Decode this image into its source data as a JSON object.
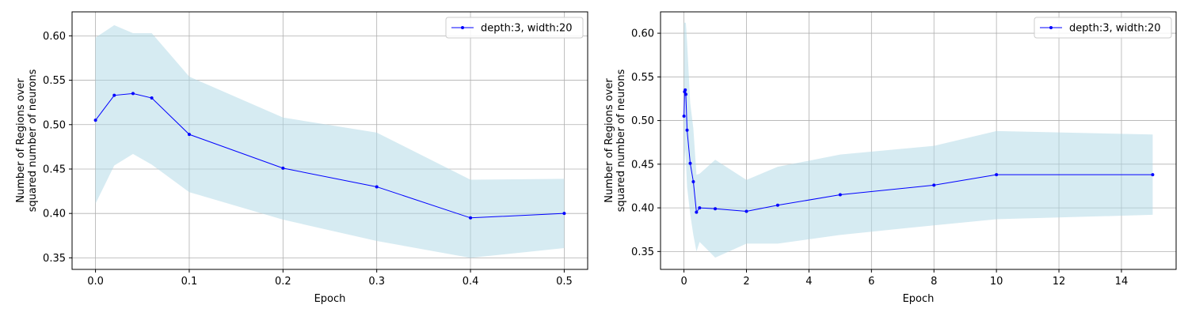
{
  "colors": {
    "line": "#0000ff",
    "band": "#add8e6",
    "grid": "#b0b0b0",
    "axes": "#000000",
    "legend_border": "#cccccc"
  },
  "chart_data": [
    {
      "type": "line",
      "xlabel": "Epoch",
      "ylabel_lines": [
        "Number of Regions over",
        "squared number of neurons"
      ],
      "xlim": [
        -0.025,
        0.525
      ],
      "ylim": [
        0.337,
        0.627
      ],
      "xticks": [
        0.0,
        0.1,
        0.2,
        0.3,
        0.4,
        0.5
      ],
      "xtick_labels": [
        "0.0",
        "0.1",
        "0.2",
        "0.3",
        "0.4",
        "0.5"
      ],
      "yticks": [
        0.35,
        0.4,
        0.45,
        0.5,
        0.55,
        0.6
      ],
      "ytick_labels": [
        "0.35",
        "0.40",
        "0.45",
        "0.50",
        "0.55",
        "0.60"
      ],
      "grid": true,
      "legend_position": "top-right",
      "series": [
        {
          "name": "depth:3, width:20",
          "x": [
            0.0,
            0.02,
            0.04,
            0.06,
            0.1,
            0.2,
            0.3,
            0.4,
            0.5
          ],
          "y": [
            0.505,
            0.533,
            0.535,
            0.53,
            0.489,
            0.451,
            0.43,
            0.395,
            0.4
          ],
          "y_upper": [
            0.598,
            0.612,
            0.603,
            0.603,
            0.554,
            0.508,
            0.491,
            0.438,
            0.439
          ],
          "y_lower": [
            0.411,
            0.454,
            0.467,
            0.455,
            0.424,
            0.393,
            0.369,
            0.35,
            0.361
          ]
        }
      ]
    },
    {
      "type": "line",
      "xlabel": "Epoch",
      "ylabel_lines": [
        "Number of Regions over",
        "squared number of neurons"
      ],
      "xlim": [
        -0.75,
        15.75
      ],
      "ylim": [
        0.3295,
        0.6245
      ],
      "xticks": [
        0,
        2,
        4,
        6,
        8,
        10,
        12,
        14
      ],
      "xtick_labels": [
        "0",
        "2",
        "4",
        "6",
        "8",
        "10",
        "12",
        "14"
      ],
      "yticks": [
        0.35,
        0.4,
        0.45,
        0.5,
        0.55,
        0.6
      ],
      "ytick_labels": [
        "0.35",
        "0.40",
        "0.45",
        "0.50",
        "0.55",
        "0.60"
      ],
      "grid": true,
      "legend_position": "top-right",
      "series": [
        {
          "name": "depth:3, width:20",
          "x": [
            0.0,
            0.02,
            0.04,
            0.06,
            0.1,
            0.2,
            0.3,
            0.4,
            0.5,
            1,
            2,
            3,
            5,
            8,
            10,
            15
          ],
          "y": [
            0.505,
            0.533,
            0.535,
            0.53,
            0.489,
            0.451,
            0.43,
            0.395,
            0.4,
            0.399,
            0.396,
            0.403,
            0.415,
            0.426,
            0.438,
            0.438
          ],
          "y_upper": [
            0.612,
            0.612,
            0.612,
            0.612,
            0.59,
            0.52,
            0.491,
            0.438,
            0.439,
            0.455,
            0.432,
            0.447,
            0.461,
            0.471,
            0.488,
            0.484
          ],
          "y_lower": [
            0.411,
            0.454,
            0.467,
            0.455,
            0.424,
            0.393,
            0.369,
            0.35,
            0.361,
            0.343,
            0.359,
            0.359,
            0.369,
            0.38,
            0.387,
            0.392
          ]
        }
      ]
    }
  ]
}
